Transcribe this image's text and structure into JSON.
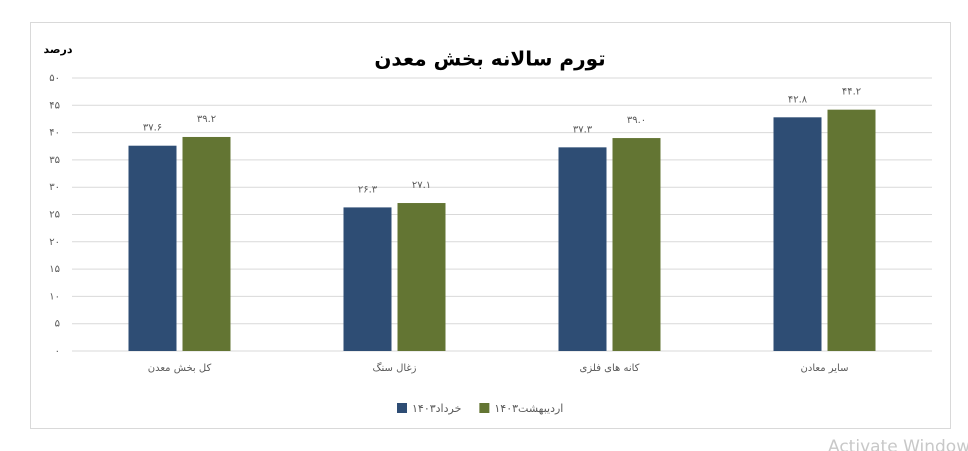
{
  "chart_data": {
    "type": "bar",
    "title": "تورم سالانه بخش معدن",
    "y_label": "درصد",
    "categories": [
      "کل بخش معدن",
      "زغال سنگ",
      "کانه های فلزی",
      "سایر معادن"
    ],
    "series": [
      {
        "name": "خرداد۱۴۰۳",
        "color": "#2e4d74",
        "values": [
          37.6,
          26.3,
          37.3,
          42.8
        ],
        "value_labels": [
          "۳۷.۶",
          "۲۶.۳",
          "۳۷.۳",
          "۴۲.۸"
        ]
      },
      {
        "name": "اردیبهشت۱۴۰۳",
        "color": "#637533",
        "values": [
          39.2,
          27.1,
          39.0,
          44.2
        ],
        "value_labels": [
          "۳۹.۲",
          "۲۷.۱",
          "۳۹.۰",
          "۴۴.۲"
        ]
      }
    ],
    "ylim": [
      0,
      50
    ],
    "yticks": [
      {
        "value": 0,
        "label": "۰"
      },
      {
        "value": 5,
        "label": "۵"
      },
      {
        "value": 10,
        "label": "۱۰"
      },
      {
        "value": 15,
        "label": "۱۵"
      },
      {
        "value": 20,
        "label": "۲۰"
      },
      {
        "value": 25,
        "label": "۲۵"
      },
      {
        "value": 30,
        "label": "۳۰"
      },
      {
        "value": 35,
        "label": "۳۵"
      },
      {
        "value": 40,
        "label": "۴۰"
      },
      {
        "value": 45,
        "label": "۴۵"
      },
      {
        "value": 50,
        "label": "۵۰"
      }
    ],
    "grid": true,
    "watermark": "Activate Windows"
  }
}
